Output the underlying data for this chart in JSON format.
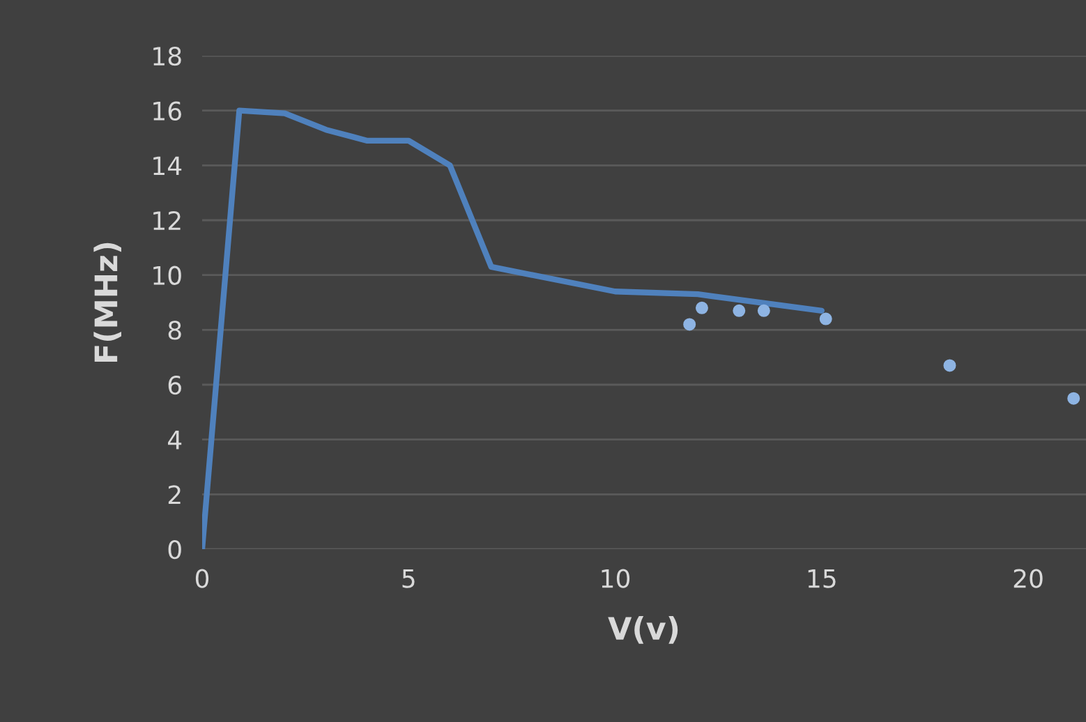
{
  "chart_data": {
    "type": "line",
    "xlabel": "V(v)",
    "ylabel": "F(MHz)",
    "xlim": [
      0,
      21.4
    ],
    "xticks": [
      0,
      5,
      10,
      15,
      20
    ],
    "ylim": [
      0,
      18
    ],
    "yticks": [
      0,
      2,
      4,
      6,
      8,
      10,
      12,
      14,
      16,
      18
    ],
    "grid": "y",
    "series": [
      {
        "color": "#4f81bd",
        "marker": "none",
        "x": [
          0,
          0.9,
          2,
          3,
          4,
          5,
          6,
          7,
          10,
          12,
          15
        ],
        "values": [
          0,
          16,
          15.9,
          15.3,
          14.9,
          14.9,
          14,
          10.3,
          9.4,
          9.3,
          8.7
        ]
      },
      {
        "type": "scatter",
        "color": "#8eb4e3",
        "marker": "circle",
        "x": [
          11.8,
          12.1,
          13,
          13.6,
          15.1,
          18.1,
          21.1
        ],
        "values": [
          8.2,
          8.8,
          8.7,
          8.7,
          8.4,
          6.7,
          5.5
        ]
      }
    ]
  }
}
